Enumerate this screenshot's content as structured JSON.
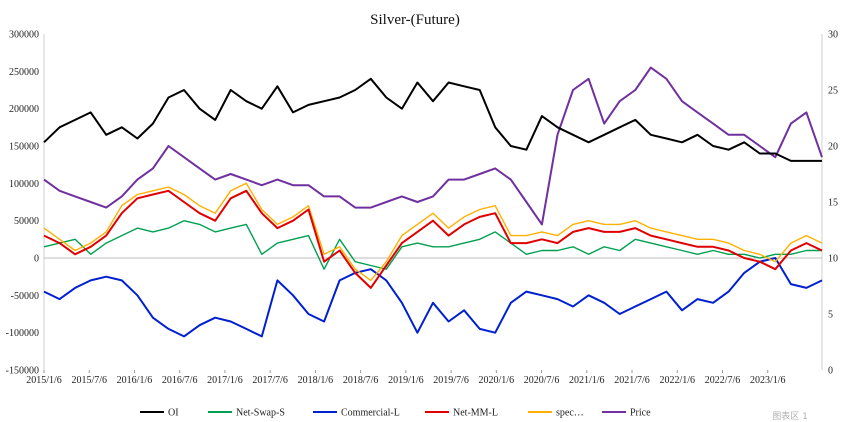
{
  "chart_data": {
    "type": "line",
    "title": "Silver-(Future)",
    "xlabel": "",
    "ylabel": "",
    "x_tick_labels": [
      "2015/1/6",
      "2015/7/6",
      "2016/1/6",
      "2016/7/6",
      "2017/1/6",
      "2017/7/6",
      "2018/1/6",
      "2018/7/6",
      "2019/1/6",
      "2019/7/6",
      "2020/1/6",
      "2020/7/6",
      "2021/1/6",
      "2021/7/6",
      "2022/1/6",
      "2022/7/6",
      "2023/1/6"
    ],
    "ylim_left": [
      -150000,
      300000
    ],
    "ylim_right": [
      0,
      30
    ],
    "left_tick_labels": [
      "300000",
      "250000",
      "200000",
      "150000",
      "100000",
      "50000",
      "0",
      "-50000",
      "-100000",
      "-150000"
    ],
    "right_tick_labels": [
      "30",
      "25",
      "20",
      "15",
      "10",
      "5",
      "0"
    ],
    "grid": false,
    "legend_position": "bottom",
    "watermark": "图表区 1",
    "series": [
      {
        "name": "OI",
        "color": "#000000",
        "axis": "left",
        "values": [
          155000,
          175000,
          185000,
          195000,
          165000,
          175000,
          160000,
          180000,
          215000,
          225000,
          200000,
          185000,
          225000,
          210000,
          200000,
          230000,
          195000,
          205000,
          210000,
          215000,
          225000,
          240000,
          215000,
          200000,
          235000,
          210000,
          235000,
          230000,
          225000,
          175000,
          150000,
          145000,
          190000,
          175000,
          165000,
          155000,
          165000,
          175000,
          185000,
          165000,
          160000,
          155000,
          165000,
          150000,
          145000,
          155000,
          140000,
          140000,
          130000,
          130000,
          130000
        ]
      },
      {
        "name": "Net-Swap-S",
        "color": "#00a050",
        "axis": "left",
        "values": [
          15000,
          20000,
          25000,
          5000,
          20000,
          30000,
          40000,
          35000,
          40000,
          50000,
          45000,
          35000,
          40000,
          45000,
          5000,
          20000,
          25000,
          30000,
          -15000,
          25000,
          -5000,
          -10000,
          -15000,
          15000,
          20000,
          15000,
          15000,
          20000,
          25000,
          35000,
          20000,
          5000,
          10000,
          10000,
          15000,
          5000,
          15000,
          10000,
          25000,
          20000,
          15000,
          10000,
          5000,
          10000,
          5000,
          5000,
          0,
          5000,
          5000,
          10000,
          10000
        ]
      },
      {
        "name": "Commercial-L",
        "color": "#0020d0",
        "axis": "left",
        "values": [
          -45000,
          -55000,
          -40000,
          -30000,
          -25000,
          -30000,
          -50000,
          -80000,
          -95000,
          -105000,
          -90000,
          -80000,
          -85000,
          -95000,
          -105000,
          -30000,
          -50000,
          -75000,
          -85000,
          -30000,
          -20000,
          -15000,
          -30000,
          -60000,
          -100000,
          -60000,
          -85000,
          -70000,
          -95000,
          -100000,
          -60000,
          -45000,
          -50000,
          -55000,
          -65000,
          -50000,
          -60000,
          -75000,
          -65000,
          -55000,
          -45000,
          -70000,
          -55000,
          -60000,
          -45000,
          -20000,
          -5000,
          0,
          -35000,
          -40000,
          -30000
        ]
      },
      {
        "name": "Net-MM-L",
        "color": "#e00000",
        "axis": "left",
        "values": [
          30000,
          20000,
          5000,
          15000,
          30000,
          60000,
          80000,
          85000,
          90000,
          75000,
          60000,
          50000,
          80000,
          90000,
          60000,
          40000,
          50000,
          65000,
          -5000,
          10000,
          -20000,
          -40000,
          -10000,
          20000,
          35000,
          50000,
          30000,
          45000,
          55000,
          60000,
          20000,
          20000,
          25000,
          20000,
          35000,
          40000,
          35000,
          35000,
          40000,
          30000,
          25000,
          20000,
          15000,
          15000,
          10000,
          0,
          -5000,
          -15000,
          10000,
          20000,
          10000
        ]
      },
      {
        "name": "spec…",
        "color": "#ffb000",
        "axis": "left",
        "values": [
          40000,
          25000,
          10000,
          20000,
          35000,
          70000,
          85000,
          90000,
          95000,
          85000,
          70000,
          60000,
          90000,
          100000,
          65000,
          45000,
          55000,
          70000,
          5000,
          15000,
          -15000,
          -30000,
          -5000,
          30000,
          45000,
          60000,
          40000,
          55000,
          65000,
          70000,
          30000,
          30000,
          35000,
          30000,
          45000,
          50000,
          45000,
          45000,
          50000,
          40000,
          35000,
          30000,
          25000,
          25000,
          20000,
          10000,
          5000,
          -5000,
          20000,
          30000,
          20000
        ]
      },
      {
        "name": "Price",
        "color": "#7030a0",
        "axis": "right",
        "values": [
          17,
          16,
          15.5,
          15,
          14.5,
          15.5,
          17,
          18,
          20,
          19,
          18,
          17,
          17.5,
          17,
          16.5,
          17,
          16.5,
          16.5,
          15.5,
          15.5,
          14.5,
          14.5,
          15,
          15.5,
          15,
          15.5,
          17,
          17,
          17.5,
          18,
          17,
          15,
          13,
          21,
          25,
          26,
          22,
          24,
          25,
          27,
          26,
          24,
          23,
          22,
          21,
          21,
          20,
          19,
          22,
          23,
          19
        ]
      }
    ]
  }
}
